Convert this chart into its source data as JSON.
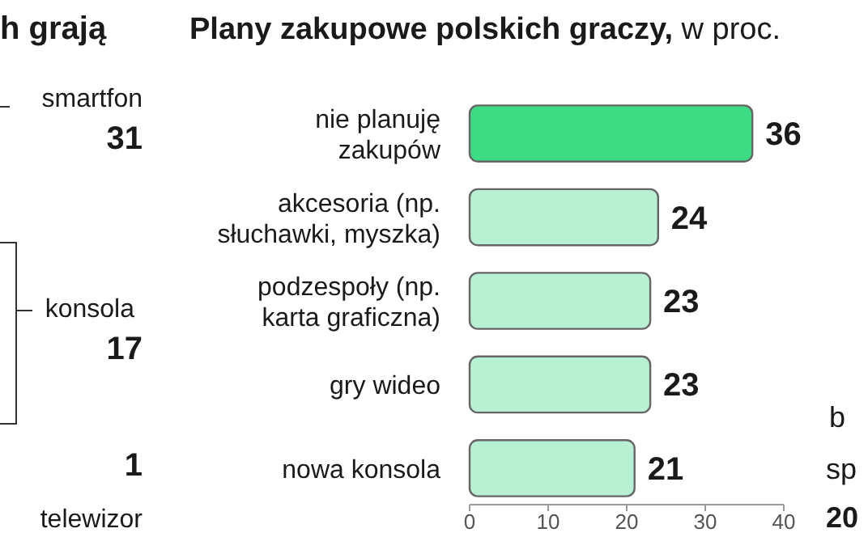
{
  "chart_data": [
    {
      "type": "other",
      "title": "h grają",
      "annotations": [
        "smartfon",
        "31",
        "konsola",
        "17",
        "1",
        "telewizor"
      ]
    },
    {
      "type": "bar",
      "orientation": "horizontal",
      "title": "Plany zakupowe polskich graczy,",
      "subtitle": "w proc.",
      "categories": [
        "nie planuję\nzakupów",
        "akcesoria (np.\nsłuchawki, myszka)",
        "podzespoły (np.\nkarta graficzna)",
        "gry wideo",
        "nowa konsola"
      ],
      "values": [
        36,
        24,
        23,
        23,
        21
      ],
      "colors": [
        "#3ddc84",
        "#b8f0d4",
        "#b8f0d4",
        "#b8f0d4",
        "#b8f0d4"
      ],
      "xlim": [
        0,
        40
      ],
      "xticks": [
        0,
        10,
        20,
        30,
        40
      ],
      "data_labels": true
    },
    {
      "type": "other",
      "annotations": [
        "b",
        "sp",
        "20"
      ]
    }
  ]
}
